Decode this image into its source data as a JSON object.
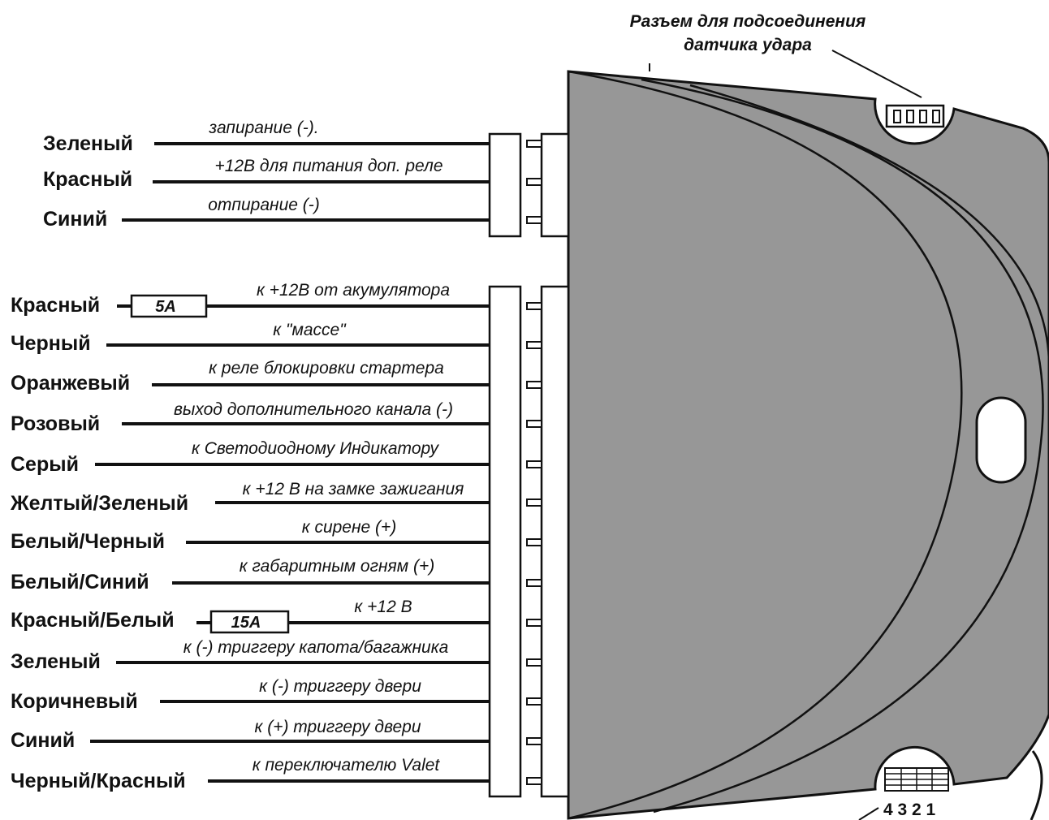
{
  "shock_sensor_connector": {
    "note_line1": "Разъем для подсоединения",
    "note_line2": "датчика удара",
    "pin_numbers": "4 3 2 1"
  },
  "connector_upper": {
    "wires": [
      {
        "color": "Зеленый",
        "function": "запирание (-)."
      },
      {
        "color": "Красный",
        "function": "+12В для питания доп. реле"
      },
      {
        "color": "Синий",
        "function": "отпирание (-)"
      }
    ]
  },
  "connector_main": {
    "wires": [
      {
        "color": "Красный",
        "function": "к +12В от акумулятора",
        "fuse": "5A"
      },
      {
        "color": "Черный",
        "function": "к \"массе\""
      },
      {
        "color": "Оранжевый",
        "function": "к реле блокировки стартера"
      },
      {
        "color": "Розовый",
        "function": "выход дополнительного канала (-)"
      },
      {
        "color": "Серый",
        "function": "к Светодиодному Индикатору"
      },
      {
        "color": "Желтый/Зеленый",
        "function": "к +12 В на замке зажигания"
      },
      {
        "color": "Белый/Черный",
        "function": "к сирене (+)"
      },
      {
        "color": "Белый/Синий",
        "function": "к габаритным огням (+)"
      },
      {
        "color": "Красный/Белый",
        "function": "к +12 В",
        "fuse": "15A"
      },
      {
        "color": "Зеленый",
        "function": "к (-) триггеру капота/багажника"
      },
      {
        "color": "Коричневый",
        "function": "к (-) триггеру двери"
      },
      {
        "color": "Синий",
        "function": "к (+) триггеру двери"
      },
      {
        "color": "Черный/Красный",
        "function": "к переключателю Valet"
      }
    ]
  },
  "colors": {
    "module_body": "#979797",
    "line": "#111111",
    "background": "#ffffff"
  }
}
